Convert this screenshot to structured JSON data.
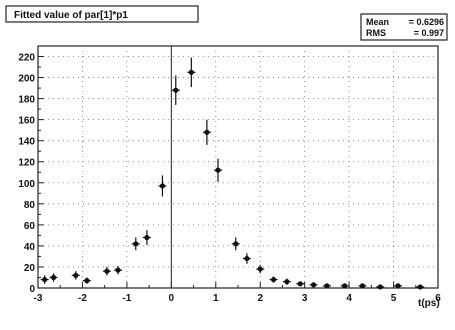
{
  "chart_data": {
    "type": "scatter",
    "title": "Fitted value of par[1]*p1",
    "xlabel": "t(ps)",
    "ylabel": "",
    "xlim": [
      -3,
      6
    ],
    "ylim": [
      0,
      230
    ],
    "xticks": [
      -3,
      -2,
      -1,
      0,
      1,
      2,
      3,
      4,
      5,
      6
    ],
    "yticks": [
      0,
      20,
      40,
      60,
      80,
      100,
      120,
      140,
      160,
      180,
      200,
      220
    ],
    "grid": true,
    "stats": [
      {
        "label": "Mean",
        "value": "= 0.6296"
      },
      {
        "label": "RMS",
        "value": "= 0.997"
      }
    ],
    "series": [
      {
        "points": [
          {
            "x": -2.85,
            "y": 8,
            "err": 4
          },
          {
            "x": -2.65,
            "y": 10,
            "err": 4
          },
          {
            "x": -2.15,
            "y": 12,
            "err": 4
          },
          {
            "x": -1.9,
            "y": 7,
            "err": 3
          },
          {
            "x": -1.45,
            "y": 16,
            "err": 4
          },
          {
            "x": -1.2,
            "y": 17,
            "err": 4
          },
          {
            "x": -0.8,
            "y": 42,
            "err": 6
          },
          {
            "x": -0.55,
            "y": 48,
            "err": 7
          },
          {
            "x": -0.2,
            "y": 97,
            "err": 10
          },
          {
            "x": 0.1,
            "y": 188,
            "err": 14
          },
          {
            "x": 0.45,
            "y": 205,
            "err": 14
          },
          {
            "x": 0.8,
            "y": 148,
            "err": 12
          },
          {
            "x": 1.05,
            "y": 112,
            "err": 11
          },
          {
            "x": 1.45,
            "y": 42,
            "err": 6
          },
          {
            "x": 1.7,
            "y": 28,
            "err": 5
          },
          {
            "x": 2.0,
            "y": 18,
            "err": 4
          },
          {
            "x": 2.3,
            "y": 8,
            "err": 3
          },
          {
            "x": 2.6,
            "y": 6,
            "err": 3
          },
          {
            "x": 2.9,
            "y": 4,
            "err": 2
          },
          {
            "x": 3.2,
            "y": 3,
            "err": 2
          },
          {
            "x": 3.5,
            "y": 2,
            "err": 1
          },
          {
            "x": 3.9,
            "y": 2,
            "err": 1
          },
          {
            "x": 4.3,
            "y": 2,
            "err": 1
          },
          {
            "x": 4.7,
            "y": 1,
            "err": 1
          },
          {
            "x": 5.1,
            "y": 2,
            "err": 1
          },
          {
            "x": 5.6,
            "y": 1,
            "err": 1
          }
        ]
      }
    ]
  }
}
